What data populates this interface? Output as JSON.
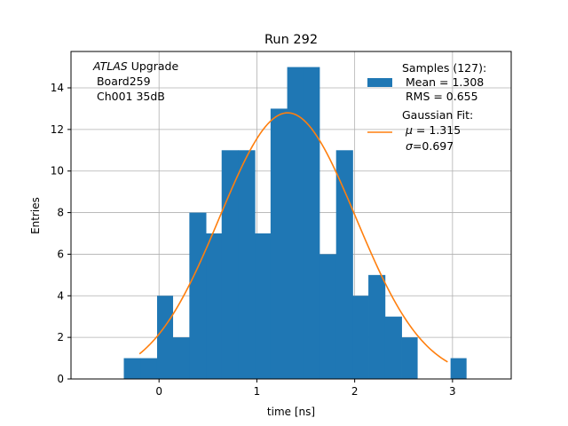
{
  "chart_data": {
    "type": "bar",
    "title": "Run 292",
    "xlabel": "time [ns]",
    "ylabel": "Entries",
    "xlim": [
      -0.9,
      3.6
    ],
    "ylim": [
      0,
      15.75
    ],
    "xticks": [
      0,
      1,
      2,
      3
    ],
    "yticks": [
      0,
      2,
      4,
      6,
      8,
      10,
      12,
      14
    ],
    "grid": true,
    "bar_color": "#1f77b4",
    "fit_color": "#ff7f0e",
    "bin_edges": [
      -0.36,
      -0.19,
      -0.02,
      0.14,
      0.31,
      0.48,
      0.64,
      0.81,
      0.98,
      1.14,
      1.31,
      1.48,
      1.64,
      1.81,
      1.98,
      2.14,
      2.31,
      2.48,
      2.64,
      2.81,
      2.98,
      3.14
    ],
    "counts": [
      1,
      1,
      4,
      2,
      8,
      7,
      11,
      11,
      7,
      13,
      15,
      15,
      6,
      11,
      4,
      5,
      3,
      2,
      0,
      0,
      1
    ],
    "fit": {
      "type": "gaussian",
      "amplitude": 12.8,
      "mu": 1.315,
      "sigma": 0.697,
      "x_range": [
        -0.2,
        2.95
      ]
    },
    "annotation": {
      "line1_italic": "ATLAS",
      "line1_rest": " Upgrade",
      "line2": " Board259",
      "line3": " Ch001 35dB"
    },
    "legend": {
      "location": "upper right",
      "samples_label": "Samples (127):",
      "samples_mean": " Mean = 1.308",
      "samples_rms": " RMS = 0.655",
      "fit_label": "Gaussian Fit:",
      "fit_mu_symbol": "μ",
      "fit_mu_text": " = 1.315",
      "fit_sigma_symbol": "σ",
      "fit_sigma_text": "=0.697"
    }
  }
}
